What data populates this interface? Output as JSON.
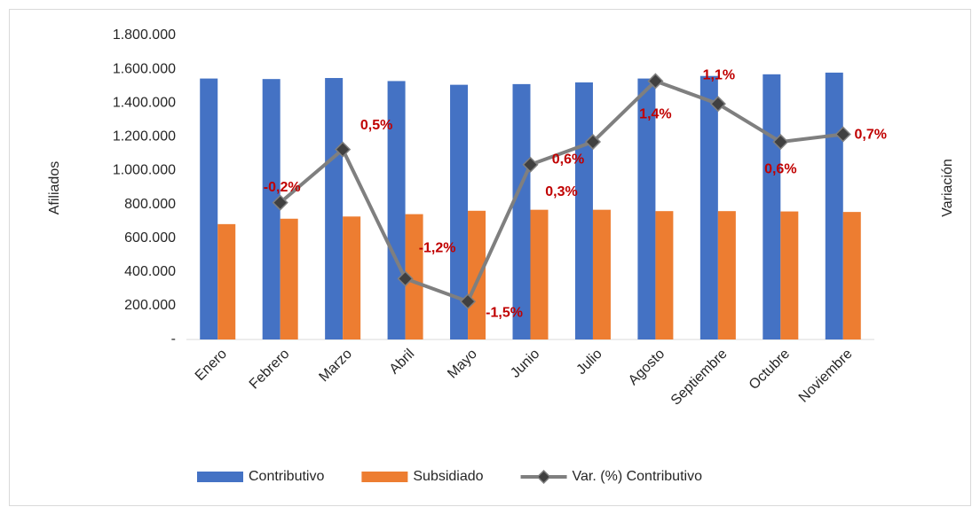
{
  "chart_data": {
    "type": "bar",
    "y_label": "Afiliados",
    "y2_label": "Variación",
    "categories": [
      "Enero",
      "Febrero",
      "Marzo",
      "Abril",
      "Mayo",
      "Junio",
      "Julio",
      "Agosto",
      "Septiembre",
      "Octubre",
      "Noviembre"
    ],
    "series": [
      {
        "name": "Contributivo",
        "type": "bar",
        "color": "#4472c4",
        "values": [
          1545000,
          1542000,
          1548000,
          1530000,
          1508000,
          1512000,
          1522000,
          1545000,
          1560000,
          1570000,
          1580000
        ]
      },
      {
        "name": "Subsidiado",
        "type": "bar",
        "color": "#ed7d31",
        "values": [
          683000,
          715000,
          728000,
          742000,
          762000,
          768000,
          768000,
          760000,
          760000,
          758000,
          755000
        ]
      },
      {
        "name": "Var. (%) Contributivo",
        "type": "line",
        "axis": "y2",
        "color": "#7f7f7f",
        "marker_color": "#404040",
        "label_color": "#c00000",
        "values": [
          null,
          -0.2,
          0.5,
          -1.2,
          -1.5,
          0.3,
          0.6,
          1.4,
          1.1,
          0.6,
          0.7
        ],
        "value_labels": [
          null,
          "-0,2%",
          "0,5%",
          "-1,2%",
          "-1,5%",
          "0,3%",
          "0,6%",
          "1,4%",
          "1,1%",
          "0,6%",
          "0,7%"
        ]
      }
    ],
    "ylim": [
      0,
      1800000
    ],
    "yticks": [
      {
        "value": 0,
        "label": "-"
      },
      {
        "value": 200000,
        "label": "200.000"
      },
      {
        "value": 400000,
        "label": "400.000"
      },
      {
        "value": 600000,
        "label": "600.000"
      },
      {
        "value": 800000,
        "label": "800.000"
      },
      {
        "value": 1000000,
        "label": "1.000.000"
      },
      {
        "value": 1200000,
        "label": "1.200.000"
      },
      {
        "value": 1400000,
        "label": "1.400.000"
      },
      {
        "value": 1600000,
        "label": "1.600.000"
      },
      {
        "value": 1800000,
        "label": "1.800.000"
      }
    ],
    "y2lim": [
      -2,
      2
    ],
    "grid": false,
    "legend": "bottom"
  }
}
